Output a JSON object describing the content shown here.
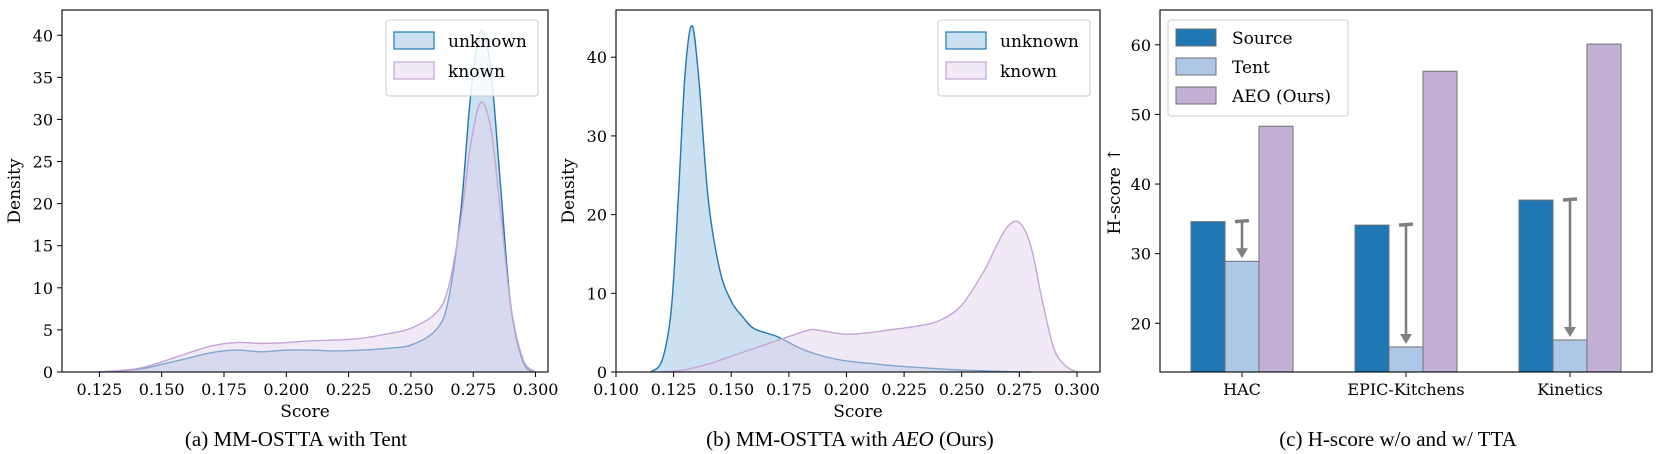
{
  "chart_data": [
    {
      "type": "area",
      "caption": "(a) MM-OSTTA with Tent",
      "xlabel": "Score",
      "ylabel": "Density",
      "xlim": [
        0.11,
        0.305
      ],
      "ylim": [
        0,
        43
      ],
      "xticks": [
        "0.125",
        "0.150",
        "0.175",
        "0.200",
        "0.225",
        "0.250",
        "0.275",
        "0.300"
      ],
      "xtick_values": [
        0.125,
        0.15,
        0.175,
        0.2,
        0.225,
        0.25,
        0.275,
        0.3
      ],
      "yticks": [
        "0",
        "5",
        "10",
        "15",
        "20",
        "25",
        "30",
        "35",
        "40"
      ],
      "ytick_values": [
        0,
        5,
        10,
        15,
        20,
        25,
        30,
        35,
        40
      ],
      "legend_position": "top-right",
      "series": [
        {
          "name": "unknown",
          "stroke": "#1f77b4",
          "fill": "#a9cbe6",
          "x": [
            0.125,
            0.14,
            0.15,
            0.16,
            0.17,
            0.18,
            0.19,
            0.2,
            0.21,
            0.22,
            0.23,
            0.24,
            0.25,
            0.26,
            0.265,
            0.27,
            0.274,
            0.278,
            0.282,
            0.286,
            0.29,
            0.295,
            0.3
          ],
          "y": [
            0,
            0.3,
            0.9,
            1.6,
            2.3,
            2.6,
            2.4,
            2.6,
            2.6,
            2.5,
            2.6,
            2.8,
            3.2,
            5.0,
            8.5,
            19,
            33,
            40.5,
            36,
            22,
            8,
            1.2,
            0
          ]
        },
        {
          "name": "known",
          "stroke": "#c5a5d6",
          "fill": "#e3d3ee",
          "x": [
            0.125,
            0.14,
            0.15,
            0.16,
            0.17,
            0.18,
            0.19,
            0.2,
            0.21,
            0.22,
            0.23,
            0.24,
            0.25,
            0.26,
            0.265,
            0.27,
            0.274,
            0.278,
            0.282,
            0.286,
            0.29,
            0.295,
            0.3
          ],
          "y": [
            0,
            0.4,
            1.2,
            2.2,
            3.1,
            3.5,
            3.4,
            3.5,
            3.7,
            3.8,
            4.0,
            4.5,
            5.2,
            7.0,
            10,
            18,
            27,
            32,
            29,
            19,
            8,
            1.5,
            0
          ]
        }
      ]
    },
    {
      "type": "area",
      "caption_prefix": "(b) MM-OSTTA with ",
      "caption_italic": "AEO",
      "caption_suffix": " (Ours)",
      "xlabel": "Score",
      "ylabel": "Density",
      "xlim": [
        0.1,
        0.31
      ],
      "ylim": [
        0,
        46
      ],
      "xticks": [
        "0.100",
        "0.125",
        "0.150",
        "0.175",
        "0.200",
        "0.225",
        "0.250",
        "0.275",
        "0.300"
      ],
      "xtick_values": [
        0.1,
        0.125,
        0.15,
        0.175,
        0.2,
        0.225,
        0.25,
        0.275,
        0.3
      ],
      "yticks": [
        "0",
        "10",
        "20",
        "30",
        "40"
      ],
      "ytick_values": [
        0,
        10,
        20,
        30,
        40
      ],
      "legend_position": "top-right",
      "series": [
        {
          "name": "unknown",
          "stroke": "#1f77b4",
          "fill": "#a9cbe6",
          "x": [
            0.115,
            0.12,
            0.124,
            0.127,
            0.13,
            0.133,
            0.136,
            0.14,
            0.145,
            0.15,
            0.155,
            0.16,
            0.17,
            0.18,
            0.19,
            0.2,
            0.21,
            0.22,
            0.23,
            0.24,
            0.25,
            0.26,
            0.27,
            0.28
          ],
          "y": [
            0,
            1.5,
            8,
            22,
            38,
            44,
            37,
            22,
            13,
            9,
            7,
            5.5,
            4.5,
            3.0,
            2.0,
            1.4,
            1.1,
            0.8,
            0.6,
            0.4,
            0.25,
            0.15,
            0.05,
            0
          ]
        },
        {
          "name": "known",
          "stroke": "#c5a5d6",
          "fill": "#e3d3ee",
          "x": [
            0.12,
            0.13,
            0.14,
            0.15,
            0.16,
            0.17,
            0.18,
            0.185,
            0.19,
            0.2,
            0.21,
            0.22,
            0.23,
            0.24,
            0.25,
            0.26,
            0.265,
            0.27,
            0.275,
            0.28,
            0.285,
            0.29,
            0.295,
            0.3
          ],
          "y": [
            0,
            0.3,
            1.0,
            2.0,
            3.0,
            4.0,
            5.0,
            5.4,
            5.2,
            4.8,
            5.0,
            5.4,
            5.8,
            6.5,
            8.5,
            13,
            16,
            18.5,
            19,
            16,
            9,
            3,
            0.8,
            0
          ]
        }
      ]
    },
    {
      "type": "bar",
      "caption": "(c) H-score w/o and w/ TTA",
      "ylabel": "H-score ↑",
      "categories": [
        "HAC",
        "EPIC-Kitchens",
        "Kinetics"
      ],
      "ylim": [
        13,
        65
      ],
      "yticks": [
        "20",
        "30",
        "40",
        "50",
        "60"
      ],
      "ytick_values": [
        20,
        30,
        40,
        50,
        60
      ],
      "legend_position": "top-left",
      "arrow_color": "#808080",
      "series": [
        {
          "name": "Source",
          "color": "#1f77b4",
          "values": [
            34.6,
            34.1,
            37.7
          ]
        },
        {
          "name": "Tent",
          "color": "#aec7e8",
          "values": [
            28.9,
            16.6,
            17.6
          ]
        },
        {
          "name": "AEO (Ours)",
          "color": "#c5b0d5",
          "values": [
            48.3,
            56.2,
            60.1
          ]
        }
      ]
    }
  ]
}
